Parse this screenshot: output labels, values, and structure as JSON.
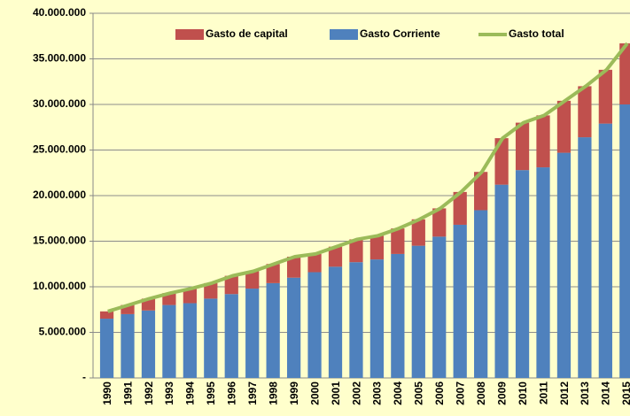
{
  "chart_data": {
    "type": "bar",
    "stacked": true,
    "categories": [
      "1990",
      "1991",
      "1992",
      "1993",
      "1994",
      "1995",
      "1996",
      "1997",
      "1998",
      "1999",
      "2000",
      "2001",
      "2002",
      "2003",
      "2004",
      "2005",
      "2006",
      "2007",
      "2008",
      "2009",
      "2010",
      "2011",
      "2012",
      "2013",
      "2014",
      "2015"
    ],
    "series": [
      {
        "name": "Gasto de capital",
        "color": "#c0504d",
        "values": [
          800000,
          1000000,
          1300000,
          1300000,
          1600000,
          1700000,
          2000000,
          1900000,
          2100000,
          2300000,
          2000000,
          2200000,
          2500000,
          2600000,
          2800000,
          2900000,
          3100000,
          3600000,
          4200000,
          5100000,
          5200000,
          5700000,
          5700000,
          5600000,
          5900000,
          6700000
        ]
      },
      {
        "name": "Gasto Corriente",
        "color": "#4f81bd",
        "values": [
          6500000,
          7000000,
          7400000,
          8000000,
          8200000,
          8700000,
          9200000,
          9800000,
          10400000,
          11000000,
          11600000,
          12200000,
          12700000,
          13000000,
          13600000,
          14500000,
          15500000,
          16800000,
          18400000,
          21200000,
          22800000,
          23100000,
          24700000,
          26400000,
          27900000,
          30000000
        ]
      },
      {
        "name": "Gasto total",
        "color": "#9bbb59",
        "type": "line",
        "values": [
          7300000,
          8000000,
          8700000,
          9300000,
          9800000,
          10400000,
          11200000,
          11700000,
          12500000,
          13300000,
          13600000,
          14400000,
          15200000,
          15600000,
          16400000,
          17400000,
          18600000,
          20400000,
          22600000,
          26300000,
          28000000,
          28800000,
          30400000,
          32000000,
          33800000,
          36700000
        ]
      }
    ],
    "ylim": [
      0,
      40000000
    ],
    "yticks": [
      {
        "value": 0,
        "label": "-"
      },
      {
        "value": 5000000,
        "label": "5.000.000"
      },
      {
        "value": 10000000,
        "label": "10.000.000"
      },
      {
        "value": 15000000,
        "label": "15.000.000"
      },
      {
        "value": 20000000,
        "label": "20.000.000"
      },
      {
        "value": 25000000,
        "label": "25.000.000"
      },
      {
        "value": 30000000,
        "label": "30.000.000"
      },
      {
        "value": 35000000,
        "label": "35.000.000"
      },
      {
        "value": 40000000,
        "label": "40.000.000"
      }
    ],
    "grid": true,
    "legend": "top"
  }
}
